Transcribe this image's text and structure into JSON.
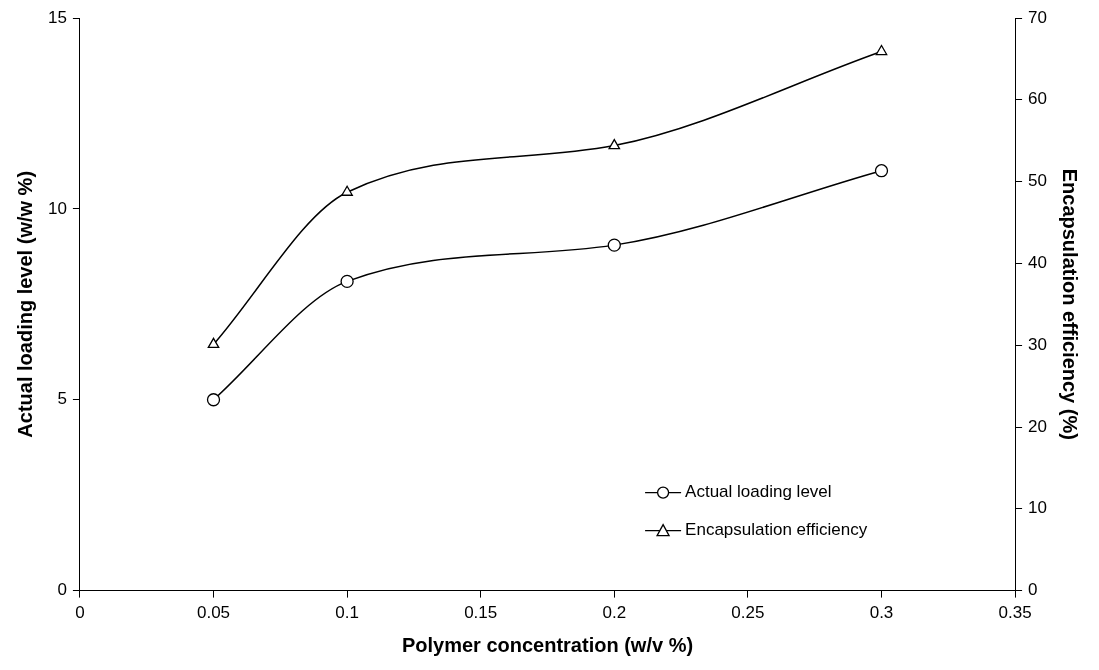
{
  "chart_data": {
    "type": "line",
    "xlabel": "Polymer concentration (w/v %)",
    "ylabel": "Actual loading level (w/w %)",
    "y2label": "Encapsulation efficiency (%)",
    "x": [
      0.05,
      0.1,
      0.2,
      0.3
    ],
    "series": [
      {
        "name": "Actual loading level",
        "color": "#000000",
        "marker": "circle",
        "values": [
          5.0,
          8.1,
          9.05,
          11.0
        ]
      },
      {
        "name": "Encapsulation efficiency",
        "color": "#000000",
        "marker": "triangle",
        "axis": "y2",
        "values": [
          30.1,
          48.7,
          54.4,
          65.9
        ]
      }
    ],
    "xlim": [
      0,
      0.35
    ],
    "xticks": [
      0,
      0.05,
      0.1,
      0.15,
      0.2,
      0.25,
      0.3,
      0.35
    ],
    "ylim": [
      0,
      15
    ],
    "yticks": [
      0,
      5,
      10,
      15
    ],
    "y2lim": [
      0,
      70
    ],
    "y2ticks": [
      0,
      10,
      20,
      30,
      40,
      50,
      60,
      70
    ],
    "grid": false,
    "legend": "bottom right",
    "line_style": "solid"
  }
}
